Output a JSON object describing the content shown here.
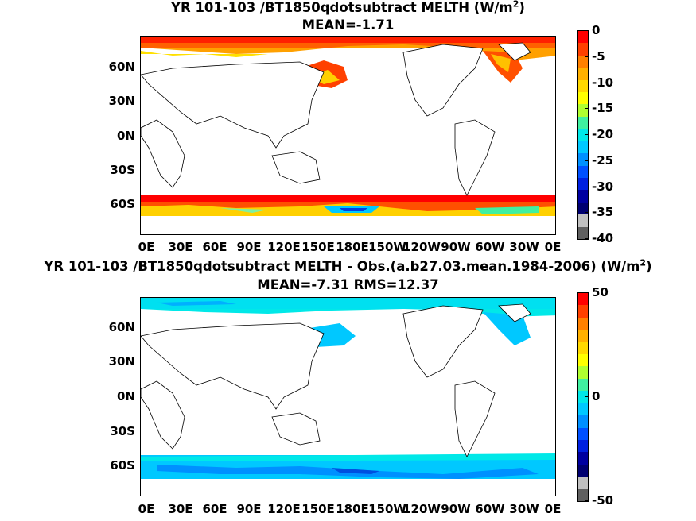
{
  "panels": [
    {
      "title_prefix": "YR 101-103 /BT1850qdotsubtract  MELTH (W/m",
      "title_sup": "2",
      "title_suffix": ")",
      "subtitle": "MEAN=-1.71",
      "y_ticks": [
        "60N",
        "30N",
        "0N",
        "30S",
        "60S"
      ],
      "x_ticks": [
        "0E",
        "30E",
        "60E",
        "90E",
        "120E",
        "150E",
        "180E",
        "150W",
        "120W",
        "90W",
        "60W",
        "30W",
        "0E"
      ],
      "cbar_labels": [
        "0",
        "-5",
        "-10",
        "-15",
        "-20",
        "-25",
        "-30",
        "-35",
        "-40"
      ],
      "cbar_range": [
        -40,
        0
      ]
    },
    {
      "title_prefix": "YR 101-103 /BT1850qdotsubtract MELTH - Obs.(a.b27.03.mean.1984-2006) (W/m",
      "title_sup": "2",
      "title_suffix": ")",
      "subtitle": "MEAN=-7.31 RMS=12.37",
      "y_ticks": [
        "60N",
        "30N",
        "0N",
        "30S",
        "60S"
      ],
      "x_ticks": [
        "0E",
        "30E",
        "60E",
        "90E",
        "120E",
        "150E",
        "180E",
        "150W",
        "120W",
        "90W",
        "60W",
        "30W",
        "0E"
      ],
      "cbar_labels": [
        "50",
        "0",
        "-50"
      ],
      "cbar_range": [
        -50,
        50
      ]
    }
  ],
  "colors": {
    "top_scale": [
      "#ff0000",
      "#ff4000",
      "#ff8000",
      "#ffb000",
      "#ffd800",
      "#ffff00",
      "#b0ff30",
      "#40f0a0",
      "#00e8e8",
      "#00c8ff",
      "#0090ff",
      "#0050ff",
      "#0020e0",
      "#0000a0",
      "#000070",
      "#c0c0c0",
      "#606060"
    ],
    "diff_scale": [
      "#ff0000",
      "#ff4000",
      "#ff8000",
      "#ffb000",
      "#ffd800",
      "#ffff00",
      "#b0ff30",
      "#40f0a0",
      "#00e8e8",
      "#00c8ff",
      "#0090ff",
      "#0050ff",
      "#0020e0",
      "#0000a0",
      "#000070",
      "#c0c0c0",
      "#606060"
    ]
  }
}
